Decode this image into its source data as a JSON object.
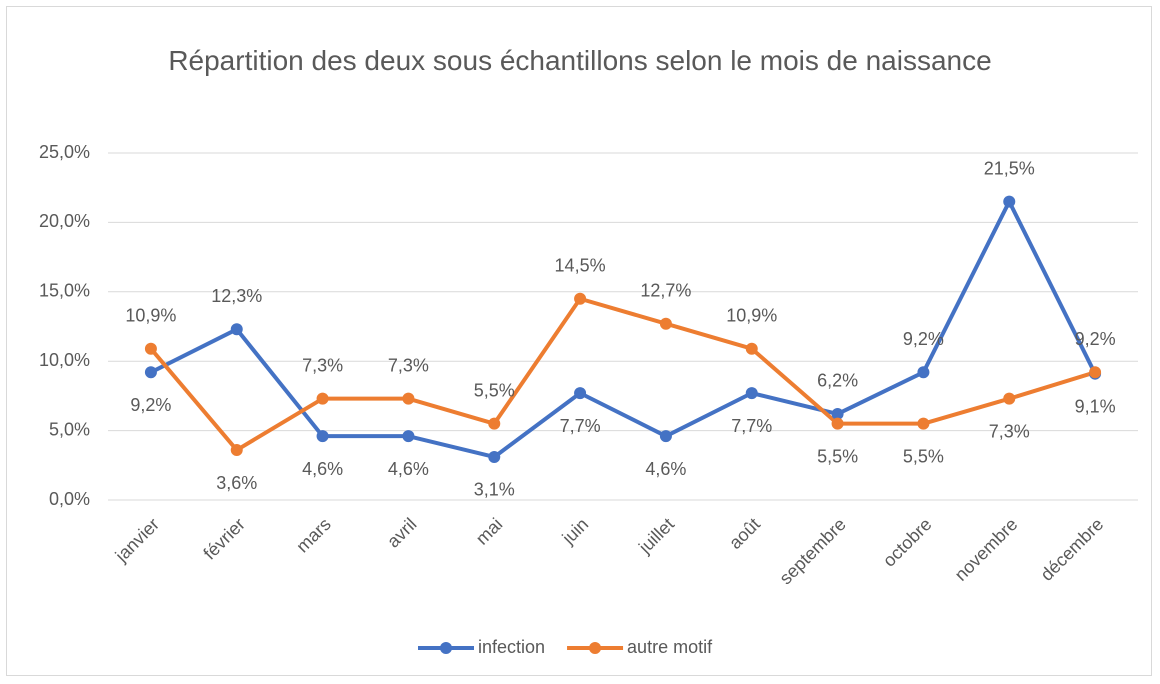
{
  "chart_data": {
    "type": "line",
    "title": "Répartition des deux sous échantillons selon le mois de naissance",
    "categories": [
      "janvier",
      "février",
      "mars",
      "avril",
      "mai",
      "juin",
      "juillet",
      "août",
      "septembre",
      "octobre",
      "novembre",
      "décembre"
    ],
    "series": [
      {
        "name": "infection",
        "color": "#4472c4",
        "values": [
          9.2,
          12.3,
          4.6,
          4.6,
          3.1,
          7.7,
          4.6,
          7.7,
          6.2,
          9.2,
          21.5,
          9.1
        ],
        "value_labels": [
          "9,2%",
          "12,3%",
          "4,6%",
          "4,6%",
          "3,1%",
          "7,7%",
          "4,6%",
          "7,7%",
          "6,2%",
          "9,2%",
          "21,5%",
          "9,1%"
        ]
      },
      {
        "name": "autre motif",
        "color": "#ed7d31",
        "values": [
          10.9,
          3.6,
          7.3,
          7.3,
          5.5,
          14.5,
          12.7,
          10.9,
          5.5,
          5.5,
          7.3,
          9.2
        ],
        "value_labels": [
          "10,9%",
          "3,6%",
          "7,3%",
          "7,3%",
          "5,5%",
          "14,5%",
          "12,7%",
          "10,9%",
          "5,5%",
          "5,5%",
          "7,3%",
          "9,2%"
        ]
      }
    ],
    "ylim": [
      0,
      25
    ],
    "yticks": [
      {
        "value": 0,
        "label": "0,0%"
      },
      {
        "value": 5,
        "label": "5,0%"
      },
      {
        "value": 10,
        "label": "10,0%"
      },
      {
        "value": 15,
        "label": "15,0%"
      },
      {
        "value": 20,
        "label": "20,0%"
      },
      {
        "value": 25,
        "label": "25,0%"
      }
    ],
    "grid": true,
    "legend": "bottom"
  }
}
